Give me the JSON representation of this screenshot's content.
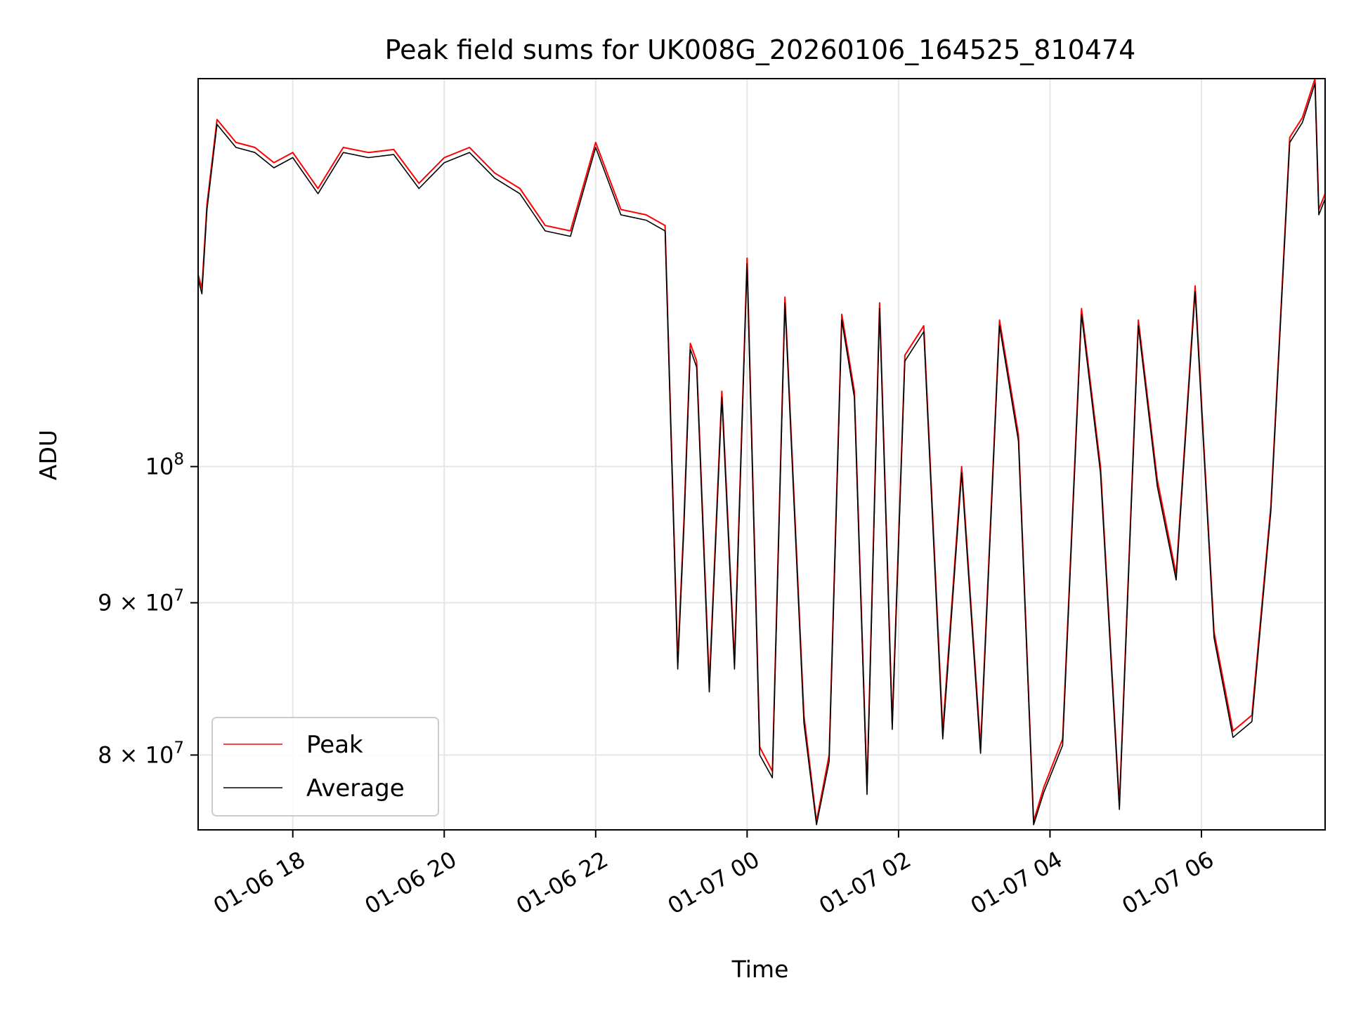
{
  "chart_data": {
    "type": "line",
    "title": "Peak field sums for UK008G_20260106_164525_810474",
    "xlabel": "Time",
    "ylabel": "ADU",
    "yscale": "log",
    "grid": true,
    "legend_position": "lower-left",
    "xlim": [
      "2026-01-06 16:45",
      "2026-01-07 07:38"
    ],
    "ylim": [
      75500000,
      135000000
    ],
    "x_ticks": [
      {
        "value": "2026-01-06 18:00",
        "label": "01-06 18"
      },
      {
        "value": "2026-01-06 20:00",
        "label": "01-06 20"
      },
      {
        "value": "2026-01-06 22:00",
        "label": "01-06 22"
      },
      {
        "value": "2026-01-07 00:00",
        "label": "01-07 00"
      },
      {
        "value": "2026-01-07 02:00",
        "label": "01-07 02"
      },
      {
        "value": "2026-01-07 04:00",
        "label": "01-07 04"
      },
      {
        "value": "2026-01-07 06:00",
        "label": "01-07 06"
      }
    ],
    "y_ticks": [
      {
        "value": 80000000,
        "label": "8 × 10",
        "exp": "7"
      },
      {
        "value": 90000000,
        "label": "9 × 10",
        "exp": "7"
      },
      {
        "value": 100000000,
        "label": "10",
        "exp": "8"
      }
    ],
    "series": [
      {
        "name": "Peak",
        "color": "#ff0000"
      },
      {
        "name": "Average",
        "color": "#000000"
      }
    ],
    "x": [
      "2026-01-06 16:45",
      "2026-01-06 16:48",
      "2026-01-06 16:52",
      "2026-01-06 17:00",
      "2026-01-06 17:15",
      "2026-01-06 17:30",
      "2026-01-06 17:45",
      "2026-01-06 18:00",
      "2026-01-06 18:20",
      "2026-01-06 18:40",
      "2026-01-06 19:00",
      "2026-01-06 19:20",
      "2026-01-06 19:40",
      "2026-01-06 20:00",
      "2026-01-06 20:20",
      "2026-01-06 20:40",
      "2026-01-06 21:00",
      "2026-01-06 21:20",
      "2026-01-06 21:40",
      "2026-01-06 22:00",
      "2026-01-06 22:20",
      "2026-01-06 22:40",
      "2026-01-06 22:55",
      "2026-01-06 23:05",
      "2026-01-06 23:10",
      "2026-01-06 23:15",
      "2026-01-06 23:20",
      "2026-01-06 23:30",
      "2026-01-06 23:40",
      "2026-01-06 23:50",
      "2026-01-07 00:00",
      "2026-01-07 00:10",
      "2026-01-07 00:20",
      "2026-01-07 00:30",
      "2026-01-07 00:45",
      "2026-01-07 00:55",
      "2026-01-07 01:05",
      "2026-01-07 01:15",
      "2026-01-07 01:25",
      "2026-01-07 01:35",
      "2026-01-07 01:45",
      "2026-01-07 01:55",
      "2026-01-07 02:05",
      "2026-01-07 02:20",
      "2026-01-07 02:35",
      "2026-01-07 02:50",
      "2026-01-07 03:05",
      "2026-01-07 03:20",
      "2026-01-07 03:35",
      "2026-01-07 03:47",
      "2026-01-07 03:55",
      "2026-01-07 04:10",
      "2026-01-07 04:25",
      "2026-01-07 04:40",
      "2026-01-07 04:55",
      "2026-01-07 05:10",
      "2026-01-07 05:25",
      "2026-01-07 05:40",
      "2026-01-07 05:55",
      "2026-01-07 06:10",
      "2026-01-07 06:25",
      "2026-01-07 06:40",
      "2026-01-07 06:55",
      "2026-01-07 07:10",
      "2026-01-07 07:20",
      "2026-01-07 07:30",
      "2026-01-07 07:33",
      "2026-01-07 07:38"
    ],
    "peak": [
      116000000,
      114800000,
      122500000,
      130800000,
      128500000,
      128000000,
      126500000,
      127500000,
      124000000,
      128000000,
      127500000,
      127800000,
      124500000,
      127000000,
      128000000,
      125500000,
      124000000,
      120500000,
      120000000,
      128500000,
      122000000,
      121500000,
      120500000,
      86000000,
      96000000,
      110000000,
      108500000,
      84500000,
      106000000,
      86000000,
      117500000,
      80500000,
      79000000,
      114000000,
      82500000,
      76000000,
      80000000,
      112500000,
      106000000,
      78000000,
      113500000,
      82000000,
      109000000,
      111500000,
      81500000,
      100000000,
      80500000,
      112000000,
      102500000,
      76000000,
      78000000,
      81000000,
      113000000,
      100000000,
      77000000,
      112000000,
      99000000,
      92000000,
      115000000,
      88000000,
      81500000,
      82500000,
      97000000,
      129000000,
      131000000,
      135000000,
      122000000,
      123500000
    ],
    "average": [
      115600000,
      114300000,
      122000000,
      130300000,
      128000000,
      127500000,
      126000000,
      127000000,
      123500000,
      127500000,
      127000000,
      127300000,
      124000000,
      126500000,
      127500000,
      125000000,
      123500000,
      120000000,
      119500000,
      128000000,
      121500000,
      121000000,
      120000000,
      85500000,
      95500000,
      109500000,
      108000000,
      84000000,
      105500000,
      85500000,
      117000000,
      80000000,
      78600000,
      113500000,
      82000000,
      75800000,
      79600000,
      112000000,
      105500000,
      77600000,
      113000000,
      81600000,
      108500000,
      111000000,
      81000000,
      99500000,
      80100000,
      111500000,
      102000000,
      75800000,
      77700000,
      80600000,
      112500000,
      99500000,
      76700000,
      111500000,
      98500000,
      91600000,
      114500000,
      87600000,
      81100000,
      82100000,
      96600000,
      128500000,
      130500000,
      134500000,
      121500000,
      123000000
    ]
  }
}
